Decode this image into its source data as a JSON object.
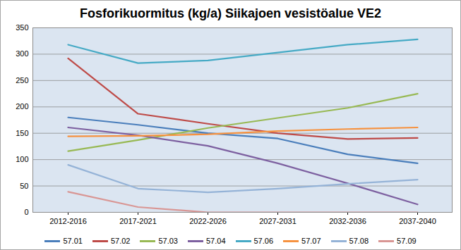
{
  "chart_data": {
    "type": "line",
    "title": "Fosforikuormitus (kg/a) Siikajoen vesistöalue VE2",
    "categories": [
      "2012-2016",
      "2017-2021",
      "2022-2026",
      "2027-2031",
      "2032-2036",
      "2037-2040"
    ],
    "series": [
      {
        "name": "57.01",
        "color": "#4a7ebb",
        "values": [
          180,
          166,
          150,
          140,
          110,
          93
        ]
      },
      {
        "name": "57.02",
        "color": "#be4b48",
        "values": [
          292,
          187,
          168,
          150,
          139,
          141
        ]
      },
      {
        "name": "57.03",
        "color": "#98b954",
        "values": [
          116,
          137,
          160,
          179,
          198,
          225
        ]
      },
      {
        "name": "57.04",
        "color": "#7d60a0",
        "values": [
          161,
          146,
          126,
          93,
          55,
          15
        ]
      },
      {
        "name": "57.06",
        "color": "#46aac5",
        "values": [
          318,
          283,
          288,
          303,
          318,
          328
        ]
      },
      {
        "name": "57.07",
        "color": "#f69240",
        "values": [
          144,
          145,
          148,
          154,
          158,
          161
        ]
      },
      {
        "name": "57.08",
        "color": "#95b3d7",
        "values": [
          90,
          45,
          38,
          45,
          54,
          62
        ]
      },
      {
        "name": "57.09",
        "color": "#d99694",
        "values": [
          39,
          10,
          0,
          0,
          0,
          0
        ]
      }
    ],
    "ylim": [
      0,
      350
    ],
    "yticks": [
      0,
      50,
      100,
      150,
      200,
      250,
      300,
      350
    ],
    "grid": true,
    "legend": "bottom"
  }
}
